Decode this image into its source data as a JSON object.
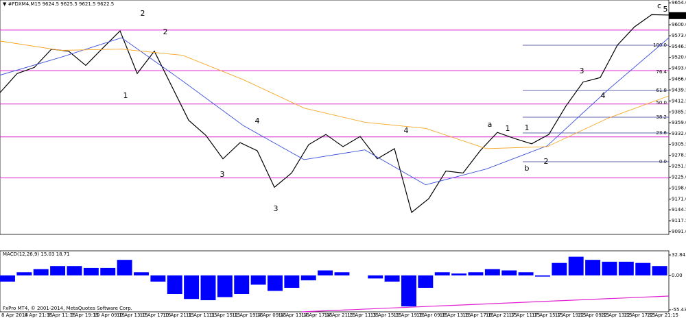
{
  "chart_data": {
    "type": "line",
    "title": "▼ #FDXM4,M15  9624.5 9625.5 9621.5 9622.5",
    "footer": "FxPro MT4, © 2001-2014, MetaQuotes Software Corp.",
    "ylim": [
      9084,
      9661
    ],
    "yticks": [
      {
        "value": 9654,
        "label": "9654.0"
      },
      {
        "value": 9600,
        "label": "9600.0"
      },
      {
        "value": 9573,
        "label": "9573.0"
      },
      9546.5,
      {
        "value": 9520,
        "label": "9520.0"
      },
      {
        "value": 9493,
        "label": "9493.0"
      },
      {
        "value": 9466,
        "label": "9466.0"
      },
      9439.5,
      9412.5,
      9385.5,
      {
        "value": 9359,
        "label": "9359.0"
      },
      {
        "value": 9332,
        "label": "9332.0"
      },
      9305.5,
      9278.5,
      9251.5,
      {
        "value": 9225,
        "label": "9225.0"
      },
      {
        "value": 9198,
        "label": "9198.0"
      },
      {
        "value": 9171,
        "label": "9171.0"
      },
      9144.5,
      9117.5,
      {
        "value": 9091,
        "label": "9091.0"
      }
    ],
    "last_price": 9622.5,
    "series": [
      {
        "name": "Price",
        "color": "#000000",
        "values": [
          9433,
          9480,
          9495,
          9540,
          9535,
          9500,
          9543,
          9585,
          9480,
          9535,
          9450,
          9365,
          9328,
          9270,
          9310,
          9290,
          9200,
          9235,
          9305,
          9330,
          9300,
          9325,
          9270,
          9295,
          9138,
          9172,
          9240,
          9235,
          9290,
          9335,
          9320,
          9307,
          9330,
          9400,
          9459,
          9470,
          9550,
          9595,
          9625,
          9624
        ]
      },
      {
        "name": "MA fast",
        "color": "#3a4fd8",
        "values": [
          9476,
          9520,
          9568,
          9462,
          9352,
          9268,
          9292,
          9206,
          9245,
          9302,
          9440,
          9568
        ]
      },
      {
        "name": "MA slow",
        "color": "#f5a623",
        "values": [
          9560,
          9537,
          9540,
          9525,
          9465,
          9395,
          9360,
          9345,
          9295,
          9300,
          9370,
          9425
        ]
      }
    ],
    "levels": [
      9587,
      9487,
      9405,
      9324,
      9223
    ],
    "level_color": "#e020d0",
    "fib_labels": [
      "100.0",
      "76.4",
      "61.8",
      "50.0",
      "38.2",
      "23.6",
      "0.0"
    ],
    "wave_labels": [
      "2",
      "2",
      "1",
      "1",
      "4",
      "3",
      "3",
      "4",
      "a",
      "b",
      "c",
      "1",
      "2",
      "3",
      "4",
      "5"
    ],
    "xlabels": [
      "8 Apr 2014",
      "8 Apr 21:15",
      "9 Apr 11:15",
      "9 Apr 19:15",
      "10 Apr 09:15",
      "10 Apr 13:15",
      "10 Apr 17:15",
      "10 Apr 21:15",
      "11 Apr 11:15",
      "11 Apr 15:15",
      "11 Apr 19:15",
      "14 Apr 09:15",
      "14 Apr 13:15",
      "14 Apr 17:15",
      "14 Apr 21:15",
      "15 Apr 11:15",
      "15 Apr 15:15",
      "15 Apr 19:15",
      "16 Apr 09:15",
      "16 Apr 13:15",
      "16 Apr 17:15",
      "16 Apr 21:15",
      "17 Apr 11:15",
      "17 Apr 15:15",
      "17 Apr 19:15",
      "22 Apr 09:15",
      "22 Apr 13:15",
      "22 Apr 17:15",
      "22 Apr 21:15"
    ],
    "macd": {
      "title": "MACD(12,26,9) 15.03 18.71",
      "color": "#0000ff",
      "ylim": [
        -58.7,
        39.5
      ],
      "yticks": [
        32.84,
        {
          "value": 0,
          "label": "0.00"
        },
        -55.43
      ],
      "values": [
        -10,
        5,
        10,
        15,
        15,
        12,
        12,
        25,
        5,
        -10,
        -30,
        -38,
        -40,
        -35,
        -30,
        -15,
        -25,
        -20,
        -8,
        8,
        5,
        0,
        -5,
        -10,
        -50,
        -20,
        5,
        3,
        5,
        10,
        8,
        5,
        -2,
        20,
        30,
        25,
        22,
        22,
        20,
        15
      ]
    }
  }
}
